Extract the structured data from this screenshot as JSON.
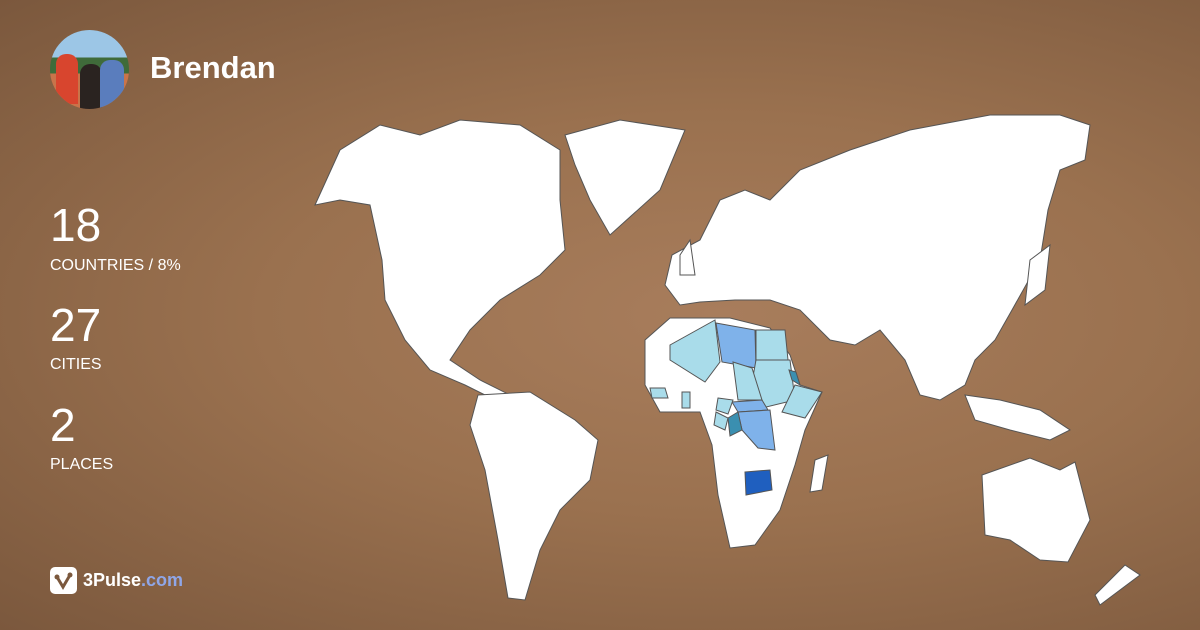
{
  "profile": {
    "name": "Brendan"
  },
  "stats": [
    {
      "value": "18",
      "label": "COUNTRIES / 8%"
    },
    {
      "value": "27",
      "label": "CITIES"
    },
    {
      "value": "2",
      "label": "PLACES"
    }
  ],
  "brand": {
    "name": "3Pulse",
    "domain": ".com"
  },
  "colors": {
    "land": "#ffffff",
    "visited_light": "#a9dcea",
    "visited_medium": "#7fb2ea",
    "visited_teal": "#3a8fb0",
    "visited_dark": "#1f5fbf",
    "background": "#9a714f"
  },
  "icons": {
    "logo": "3pulse-check-logo"
  }
}
